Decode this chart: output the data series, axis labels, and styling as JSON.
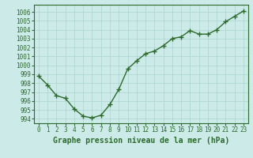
{
  "x": [
    0,
    1,
    2,
    3,
    4,
    5,
    6,
    7,
    8,
    9,
    10,
    11,
    12,
    13,
    14,
    15,
    16,
    17,
    18,
    19,
    20,
    21,
    22,
    23
  ],
  "y": [
    998.8,
    997.8,
    996.6,
    996.3,
    995.1,
    994.3,
    994.1,
    994.4,
    995.6,
    997.3,
    999.6,
    1000.5,
    1001.3,
    1001.6,
    1002.2,
    1003.0,
    1003.2,
    1003.9,
    1003.5,
    1003.5,
    1004.0,
    1004.9,
    1005.5,
    1006.1
  ],
  "line_color": "#2d6a2d",
  "marker": "+",
  "marker_size": 4,
  "bg_color": "#cceae7",
  "grid_color": "#aad4d0",
  "xlabel": "Graphe pression niveau de la mer (hPa)",
  "xlabel_fontsize": 7,
  "ylabel_ticks": [
    994,
    995,
    996,
    997,
    998,
    999,
    1000,
    1001,
    1002,
    1003,
    1004,
    1005,
    1006
  ],
  "ylim": [
    993.5,
    1006.8
  ],
  "xlim": [
    -0.5,
    23.5
  ],
  "tick_fontsize": 5.5,
  "line_width": 1.0
}
